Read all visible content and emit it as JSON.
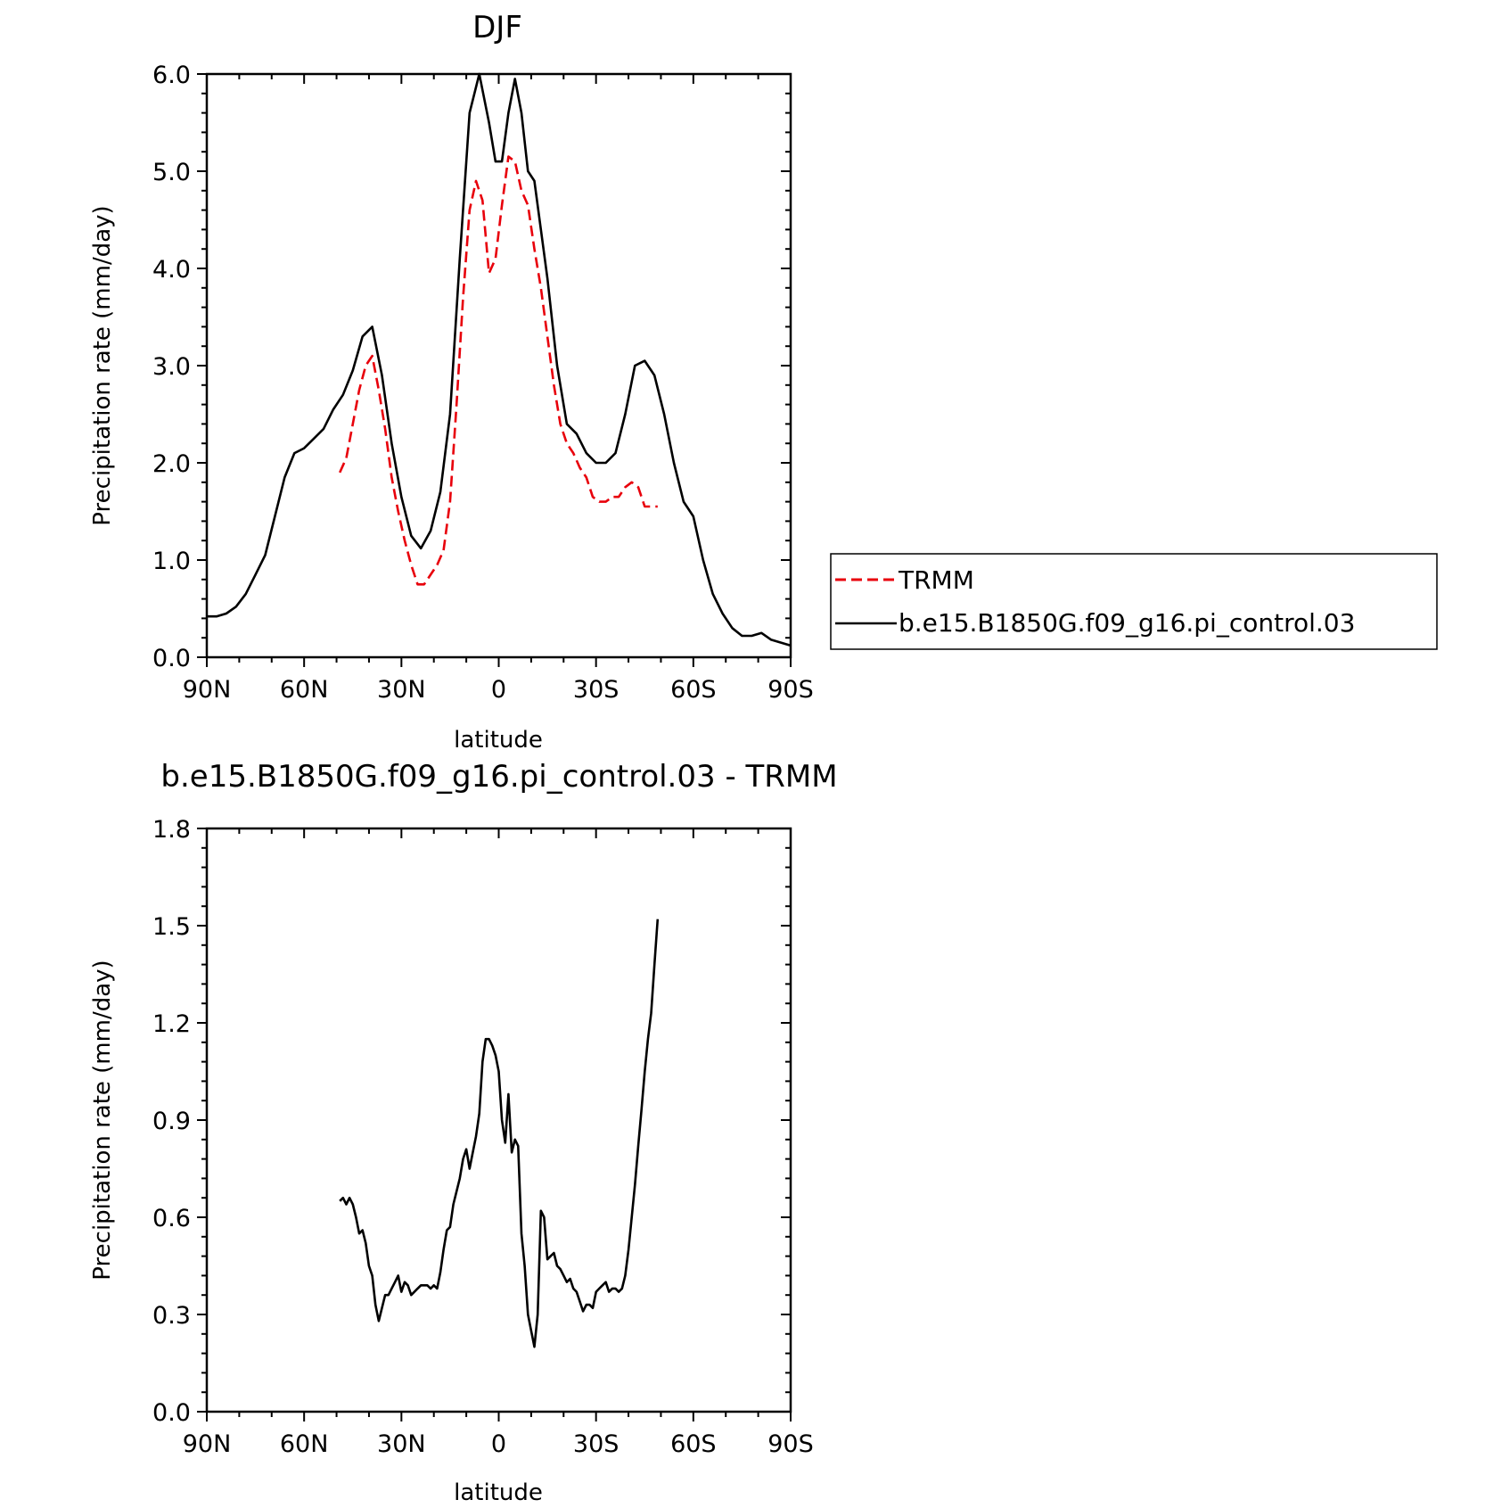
{
  "chart_data": [
    {
      "type": "line",
      "title": "DJF",
      "xlabel": "latitude",
      "ylabel": "Precipitation rate (mm/day)",
      "xlim": [
        90,
        -90
      ],
      "ylim": [
        0,
        6
      ],
      "xticks": [
        90,
        60,
        30,
        0,
        -30,
        -60,
        -90
      ],
      "xtick_labels": [
        "90N",
        "60N",
        "30N",
        "0",
        "30S",
        "60S",
        "90S"
      ],
      "yticks": [
        0,
        1,
        2,
        3,
        4,
        5,
        6
      ],
      "ytick_labels": [
        "0.0",
        "1.0",
        "2.0",
        "3.0",
        "4.0",
        "5.0",
        "6.0"
      ],
      "legend": "right",
      "series": [
        {
          "name": "TRMM",
          "color": "#e8000b",
          "dash": true,
          "x": [
            49,
            47,
            45,
            43,
            41,
            39,
            37,
            35,
            33,
            31,
            29,
            27,
            25,
            23,
            21,
            19,
            17,
            15,
            13,
            11,
            9,
            7,
            5,
            3,
            1,
            -1,
            -3,
            -5,
            -7,
            -9,
            -11,
            -13,
            -15,
            -17,
            -19,
            -21,
            -23,
            -25,
            -27,
            -29,
            -31,
            -33,
            -35,
            -37,
            -39,
            -41,
            -43,
            -45,
            -47,
            -49
          ],
          "values": [
            1.9,
            2.05,
            2.4,
            2.75,
            3.0,
            3.1,
            2.75,
            2.35,
            1.85,
            1.5,
            1.2,
            0.95,
            0.75,
            0.75,
            0.85,
            0.95,
            1.1,
            1.6,
            2.6,
            3.7,
            4.6,
            4.9,
            4.7,
            3.95,
            4.1,
            4.65,
            5.15,
            5.1,
            4.8,
            4.65,
            4.2,
            3.8,
            3.3,
            2.8,
            2.4,
            2.2,
            2.1,
            1.95,
            1.85,
            1.65,
            1.6,
            1.6,
            1.65,
            1.65,
            1.75,
            1.8,
            1.75,
            1.55,
            1.55,
            1.55
          ]
        },
        {
          "name": "b.e15.B1850G.f09_g16.pi_control.03",
          "color": "#000000",
          "dash": false,
          "x": [
            90,
            87,
            84,
            81,
            78,
            75,
            72,
            69,
            66,
            63,
            60,
            57,
            54,
            51,
            48,
            45,
            42,
            39,
            36,
            33,
            30,
            27,
            24,
            21,
            18,
            15,
            12,
            9,
            6,
            3,
            1,
            -1,
            -3,
            -5,
            -7,
            -9,
            -11,
            -13,
            -15,
            -18,
            -21,
            -24,
            -27,
            -30,
            -33,
            -36,
            -39,
            -42,
            -45,
            -48,
            -51,
            -54,
            -57,
            -60,
            -63,
            -66,
            -69,
            -72,
            -75,
            -78,
            -81,
            -84,
            -87,
            -90
          ],
          "values": [
            0.42,
            0.42,
            0.45,
            0.52,
            0.65,
            0.85,
            1.05,
            1.45,
            1.85,
            2.1,
            2.15,
            2.25,
            2.35,
            2.55,
            2.7,
            2.95,
            3.3,
            3.4,
            2.9,
            2.2,
            1.65,
            1.25,
            1.12,
            1.3,
            1.7,
            2.5,
            4.1,
            5.6,
            6.0,
            5.5,
            5.1,
            5.1,
            5.6,
            5.95,
            5.6,
            5.0,
            4.9,
            4.4,
            3.9,
            3.0,
            2.4,
            2.3,
            2.1,
            2.0,
            2.0,
            2.1,
            2.5,
            3.0,
            3.05,
            2.9,
            2.5,
            2.0,
            1.6,
            1.45,
            1.0,
            0.65,
            0.45,
            0.3,
            0.22,
            0.22,
            0.25,
            0.18,
            0.15,
            0.12
          ]
        }
      ]
    },
    {
      "type": "line",
      "title": "b.e15.B1850G.f09_g16.pi_control.03 - TRMM",
      "xlabel": "latitude",
      "ylabel": "Precipitation rate (mm/day)",
      "xlim": [
        90,
        -90
      ],
      "ylim": [
        0,
        1.8
      ],
      "xticks": [
        90,
        60,
        30,
        0,
        -30,
        -60,
        -90
      ],
      "xtick_labels": [
        "90N",
        "60N",
        "30N",
        "0",
        "30S",
        "60S",
        "90S"
      ],
      "yticks": [
        0,
        0.3,
        0.6,
        0.9,
        1.2,
        1.5,
        1.8
      ],
      "ytick_labels": [
        "0.0",
        "0.3",
        "0.6",
        "0.9",
        "1.2",
        "1.5",
        "1.8"
      ],
      "series": [
        {
          "color": "#000000",
          "x": [
            49,
            48,
            47,
            46,
            45,
            44,
            43,
            42,
            41,
            40,
            39,
            38,
            37,
            36,
            35,
            34,
            33,
            32,
            31,
            30,
            29,
            28,
            27,
            26,
            25,
            24,
            23,
            22,
            21,
            20,
            19,
            18,
            17,
            16,
            15,
            14,
            13,
            12,
            11,
            10,
            9,
            8,
            7,
            6,
            5,
            4,
            3,
            2,
            1,
            0,
            -1,
            -2,
            -3,
            -4,
            -5,
            -6,
            -7,
            -8,
            -9,
            -10,
            -11,
            -12,
            -13,
            -14,
            -15,
            -16,
            -17,
            -18,
            -19,
            -20,
            -21,
            -22,
            -23,
            -24,
            -25,
            -26,
            -27,
            -28,
            -29,
            -30,
            -31,
            -32,
            -33,
            -34,
            -35,
            -36,
            -37,
            -38,
            -39,
            -40,
            -41,
            -42,
            -43,
            -44,
            -45,
            -46,
            -47,
            -48,
            -49
          ],
          "values": [
            0.65,
            0.66,
            0.64,
            0.66,
            0.64,
            0.6,
            0.55,
            0.56,
            0.52,
            0.45,
            0.42,
            0.33,
            0.28,
            0.32,
            0.36,
            0.36,
            0.38,
            0.4,
            0.42,
            0.37,
            0.4,
            0.39,
            0.36,
            0.37,
            0.38,
            0.39,
            0.39,
            0.39,
            0.38,
            0.39,
            0.38,
            0.43,
            0.5,
            0.56,
            0.57,
            0.64,
            0.68,
            0.72,
            0.78,
            0.81,
            0.75,
            0.8,
            0.85,
            0.92,
            1.08,
            1.15,
            1.15,
            1.13,
            1.1,
            1.05,
            0.9,
            0.83,
            0.98,
            0.8,
            0.84,
            0.82,
            0.55,
            0.45,
            0.3,
            0.25,
            0.2,
            0.3,
            0.62,
            0.6,
            0.47,
            0.48,
            0.49,
            0.45,
            0.44,
            0.42,
            0.4,
            0.41,
            0.38,
            0.37,
            0.34,
            0.31,
            0.33,
            0.33,
            0.32,
            0.37,
            0.38,
            0.39,
            0.4,
            0.37,
            0.38,
            0.38,
            0.37,
            0.38,
            0.42,
            0.5,
            0.6,
            0.7,
            0.82,
            0.93,
            1.05,
            1.15,
            1.23,
            1.38,
            1.52
          ]
        }
      ]
    }
  ]
}
